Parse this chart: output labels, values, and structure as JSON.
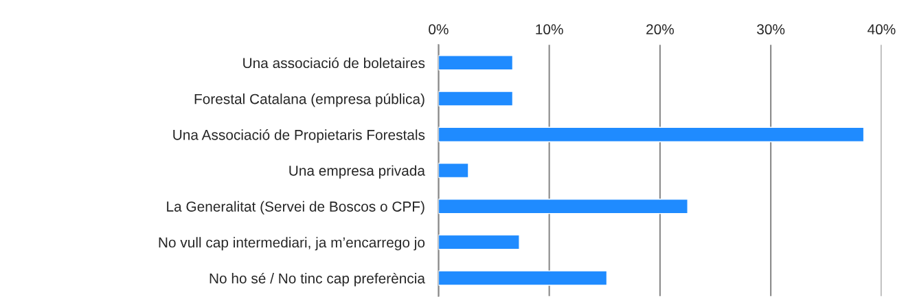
{
  "chart_data": {
    "type": "bar",
    "orientation": "horizontal",
    "categories": [
      "Una associació de boletaires",
      "Forestal Catalana (empresa pública)",
      "Una Associació de Propietaris Forestals",
      "Una empresa privada",
      "La Generalitat (Servei de Boscos o CPF)",
      "No vull cap intermediari, ja m’encarrego jo",
      "No ho sé / No tinc cap preferència"
    ],
    "values": [
      6.7,
      6.7,
      38.4,
      2.7,
      22.5,
      7.3,
      15.2
    ],
    "color": "#1f8bff",
    "xlim": [
      0,
      40
    ],
    "xticks": [
      {
        "value": 0,
        "label": "0%"
      },
      {
        "value": 10,
        "label": "10%"
      },
      {
        "value": 20,
        "label": "20%"
      },
      {
        "value": 30,
        "label": "30%"
      },
      {
        "value": 40,
        "label": "40%"
      }
    ],
    "grid": "x",
    "legend": false
  }
}
